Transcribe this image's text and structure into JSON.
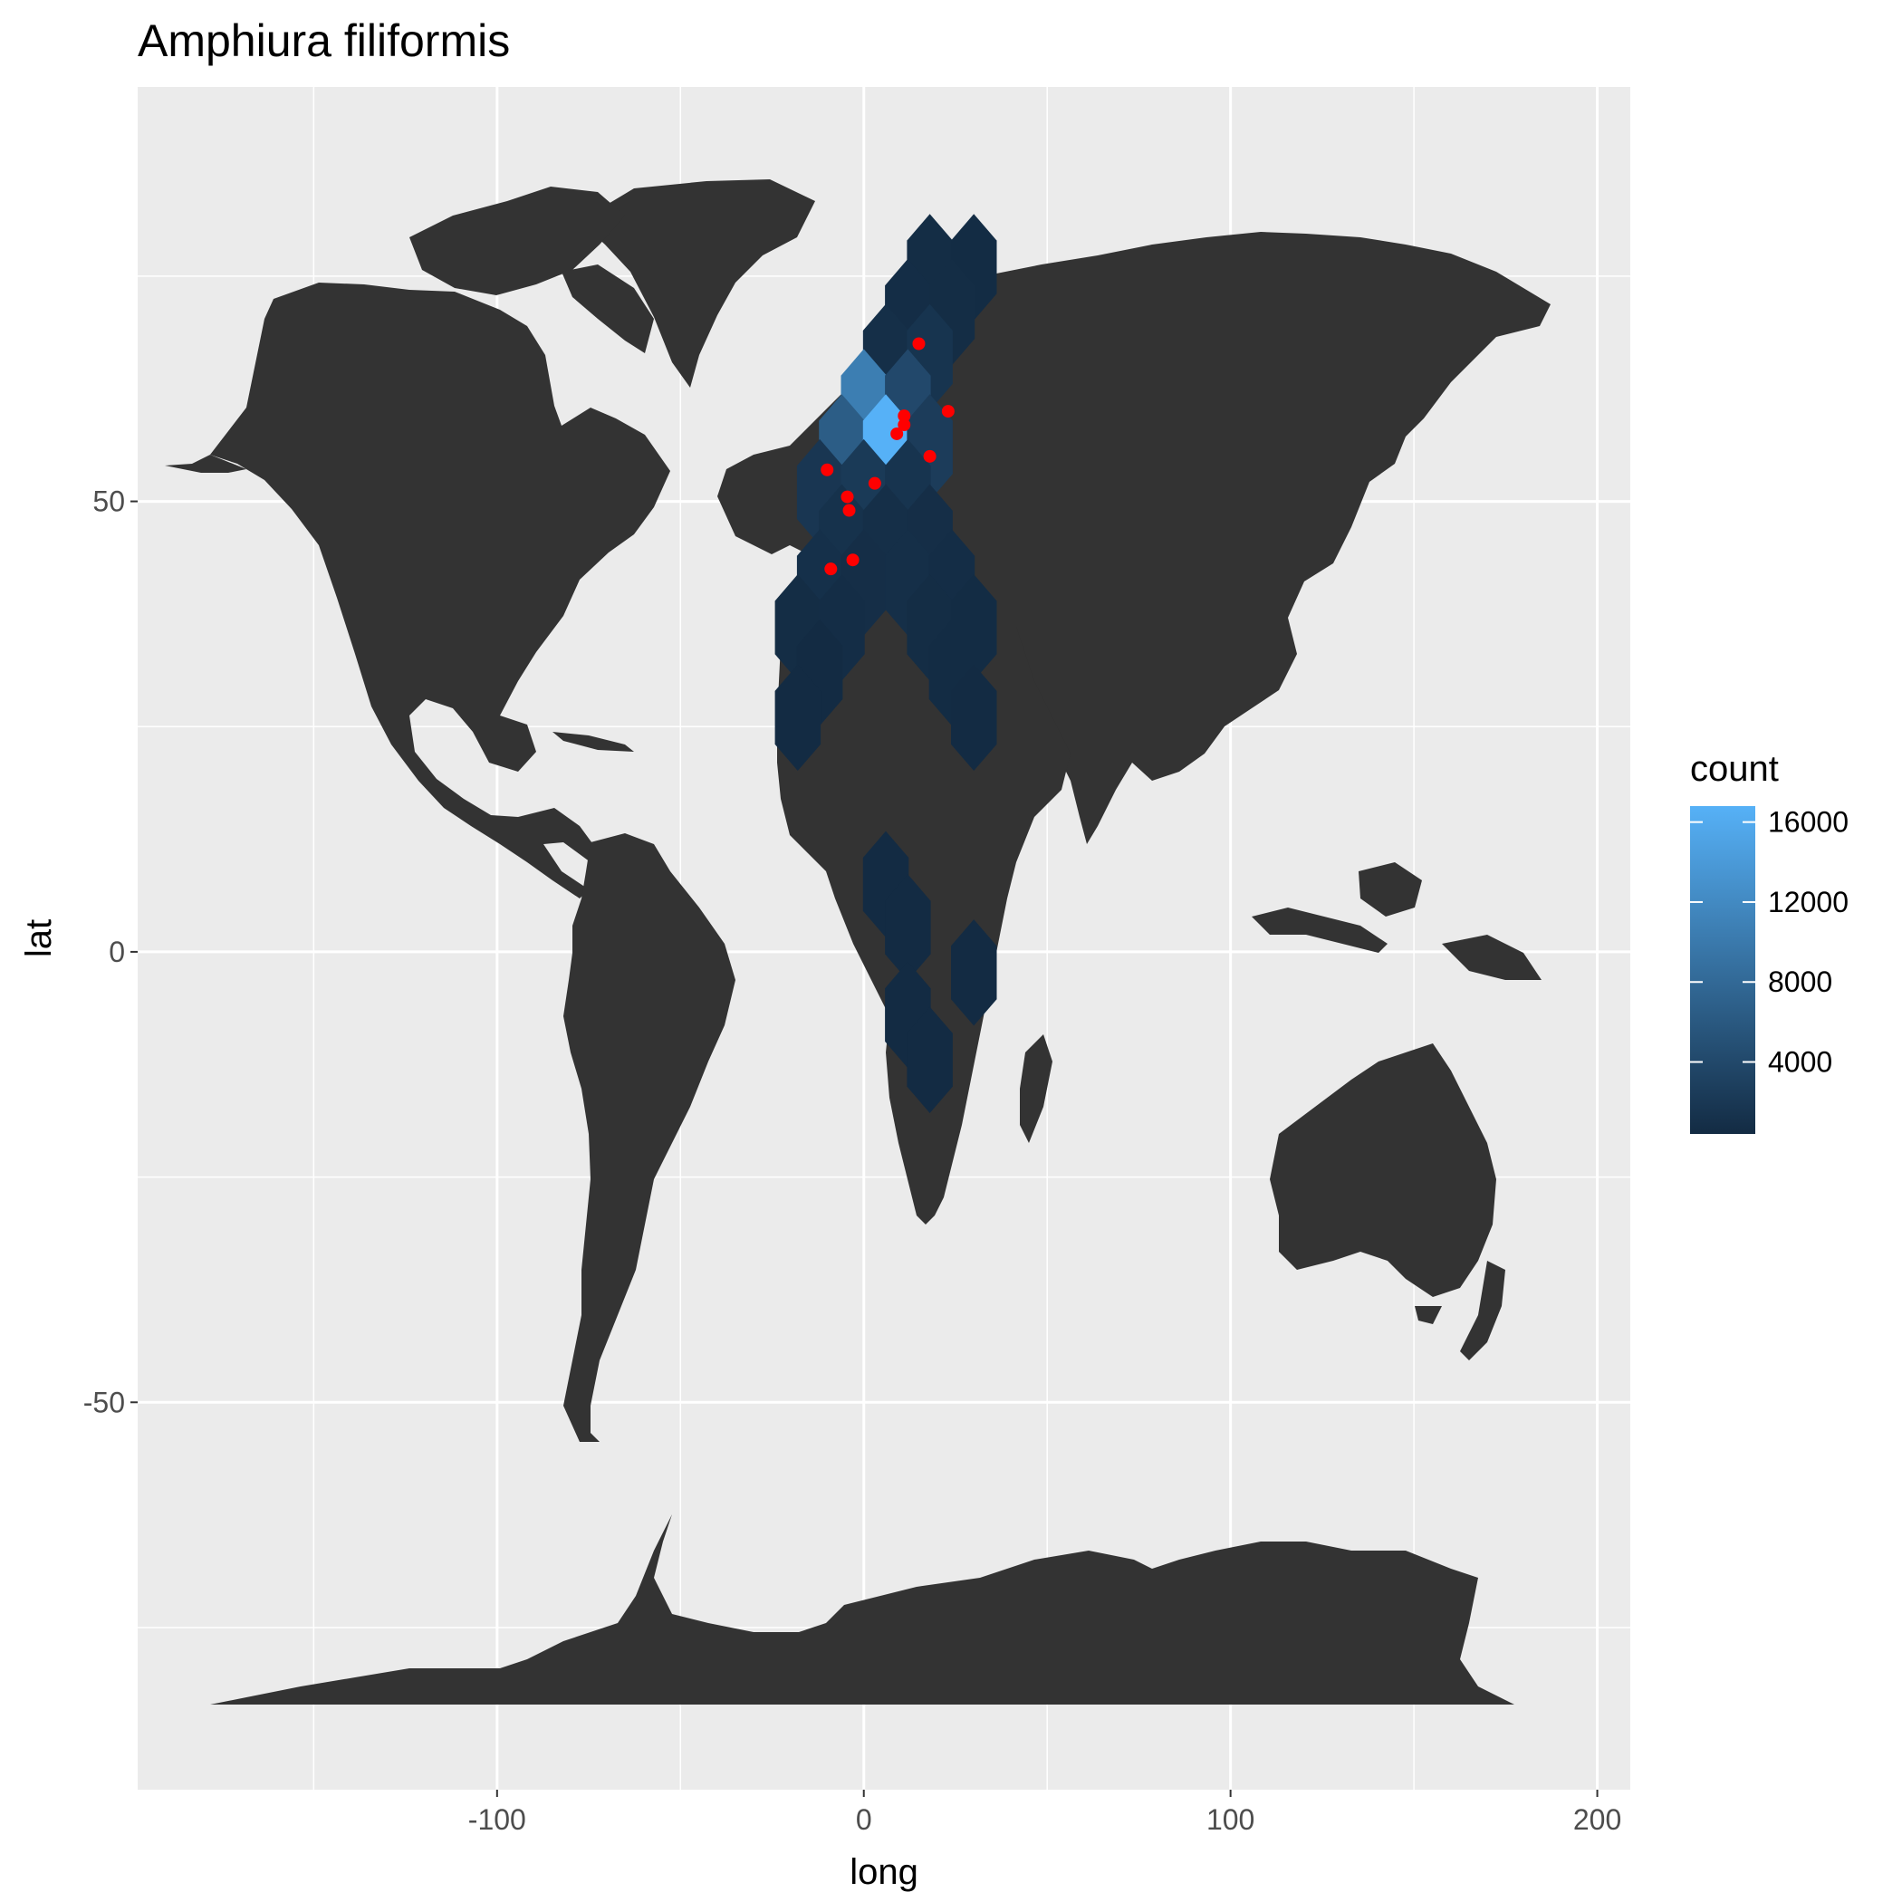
{
  "chart_data": {
    "type": "map-hexbin",
    "title": "Amphiura filiformis",
    "xlabel": "long",
    "ylabel": "lat",
    "xlim": [
      -198,
      209
    ],
    "ylim": [
      -93,
      96
    ],
    "x_ticks": [
      -100,
      0,
      100,
      200
    ],
    "y_ticks": [
      -50,
      0,
      50
    ],
    "x_minor": [
      -150,
      -50,
      50,
      150
    ],
    "y_minor": [
      -75,
      -25,
      25,
      75
    ],
    "colors": {
      "panel_bg": "#ebebeb",
      "grid": "#ffffff",
      "land": "#333333",
      "point": "#ff0000",
      "low": "#132b43",
      "high": "#56b1f7"
    },
    "legend": {
      "title": "count",
      "position": "right",
      "min": 400,
      "max": 16800,
      "breaks": [
        {
          "value": 16000,
          "label": "16000"
        },
        {
          "value": 12000,
          "label": "12000"
        },
        {
          "value": 8000,
          "label": "8000"
        },
        {
          "value": 4000,
          "label": "4000"
        }
      ]
    },
    "hex_radius": 7.2,
    "hexbins": [
      {
        "x": 18,
        "y": 76,
        "count": 600
      },
      {
        "x": 30,
        "y": 76,
        "count": 500
      },
      {
        "x": 12,
        "y": 71,
        "count": 700
      },
      {
        "x": 24,
        "y": 71,
        "count": 600
      },
      {
        "x": 6,
        "y": 66,
        "count": 900
      },
      {
        "x": 18,
        "y": 66,
        "count": 1500
      },
      {
        "x": 0,
        "y": 61,
        "count": 10500
      },
      {
        "x": 12,
        "y": 61,
        "count": 4000
      },
      {
        "x": -6,
        "y": 56,
        "count": 6500
      },
      {
        "x": 6,
        "y": 56,
        "count": 16800
      },
      {
        "x": 18,
        "y": 56,
        "count": 2500
      },
      {
        "x": -12,
        "y": 51,
        "count": 1800
      },
      {
        "x": 0,
        "y": 51,
        "count": 2200
      },
      {
        "x": 12,
        "y": 51,
        "count": 1500
      },
      {
        "x": -6,
        "y": 46,
        "count": 1200
      },
      {
        "x": 6,
        "y": 46,
        "count": 900
      },
      {
        "x": 18,
        "y": 46,
        "count": 800
      },
      {
        "x": -12,
        "y": 41,
        "count": 1000
      },
      {
        "x": 0,
        "y": 41,
        "count": 800
      },
      {
        "x": 12,
        "y": 41,
        "count": 900
      },
      {
        "x": 24,
        "y": 41,
        "count": 700
      },
      {
        "x": -18,
        "y": 36,
        "count": 600
      },
      {
        "x": -6,
        "y": 36,
        "count": 700
      },
      {
        "x": 18,
        "y": 36,
        "count": 600
      },
      {
        "x": 30,
        "y": 36,
        "count": 500
      },
      {
        "x": -12,
        "y": 31,
        "count": 400
      },
      {
        "x": 24,
        "y": 31,
        "count": 500
      },
      {
        "x": -18,
        "y": 26,
        "count": 400
      },
      {
        "x": 30,
        "y": 26,
        "count": 400
      },
      {
        "x": 6,
        "y": 7.5,
        "count": 400
      },
      {
        "x": 12,
        "y": 2.7,
        "count": 400
      },
      {
        "x": 30,
        "y": -2.3,
        "count": 400
      },
      {
        "x": 12,
        "y": -7,
        "count": 400
      },
      {
        "x": 18,
        "y": -12,
        "count": 400
      }
    ],
    "points": [
      {
        "x": 15,
        "y": 67.5
      },
      {
        "x": 23,
        "y": 60
      },
      {
        "x": 11,
        "y": 59.5
      },
      {
        "x": 11,
        "y": 58.5
      },
      {
        "x": 9,
        "y": 57.5
      },
      {
        "x": 18,
        "y": 55
      },
      {
        "x": -10,
        "y": 53.5
      },
      {
        "x": 3,
        "y": 52
      },
      {
        "x": -4.5,
        "y": 50.5
      },
      {
        "x": -4,
        "y": 49
      },
      {
        "x": -3,
        "y": 43.5
      },
      {
        "x": -9,
        "y": 42.5
      }
    ]
  }
}
